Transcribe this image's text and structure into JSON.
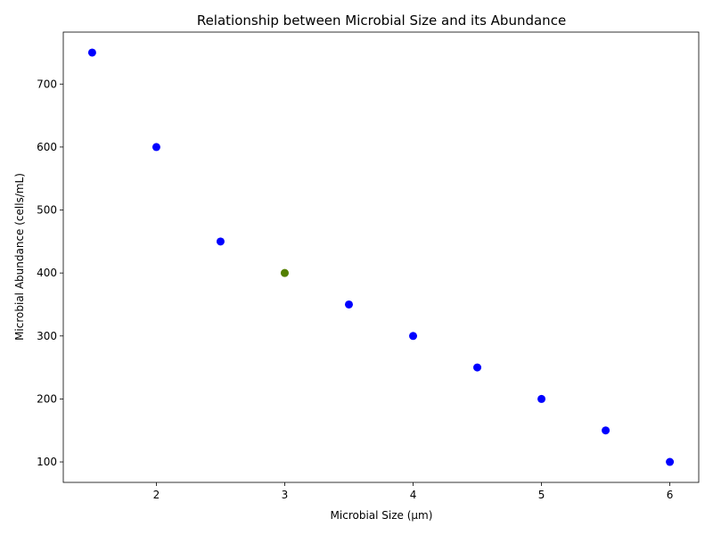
{
  "chart_data": {
    "type": "scatter",
    "title": "Relationship between Microbial Size and its Abundance",
    "xlabel": "Microbial Size (µm)",
    "ylabel": "Microbial Abundance (cells/mL)",
    "xlim": [
      1.275,
      6.225
    ],
    "ylim": [
      67.5,
      782.5
    ],
    "xticks": [
      2,
      3,
      4,
      5,
      6
    ],
    "yticks": [
      100,
      200,
      300,
      400,
      500,
      600,
      700
    ],
    "grid": false,
    "points": [
      {
        "x": 1.5,
        "y": 750,
        "color": "#0000ff"
      },
      {
        "x": 2.0,
        "y": 600,
        "color": "#0000ff"
      },
      {
        "x": 2.5,
        "y": 450,
        "color": "#0000ff"
      },
      {
        "x": 3.0,
        "y": 400,
        "color": "#808000"
      },
      {
        "x": 3.0,
        "y": 400,
        "color": "#008000"
      },
      {
        "x": 3.5,
        "y": 350,
        "color": "#0000ff"
      },
      {
        "x": 4.0,
        "y": 300,
        "color": "#0000ff"
      },
      {
        "x": 4.5,
        "y": 250,
        "color": "#0000ff"
      },
      {
        "x": 5.0,
        "y": 200,
        "color": "#0000ff"
      },
      {
        "x": 5.5,
        "y": 150,
        "color": "#0000ff"
      },
      {
        "x": 6.0,
        "y": 100,
        "color": "#0000ff"
      }
    ]
  }
}
